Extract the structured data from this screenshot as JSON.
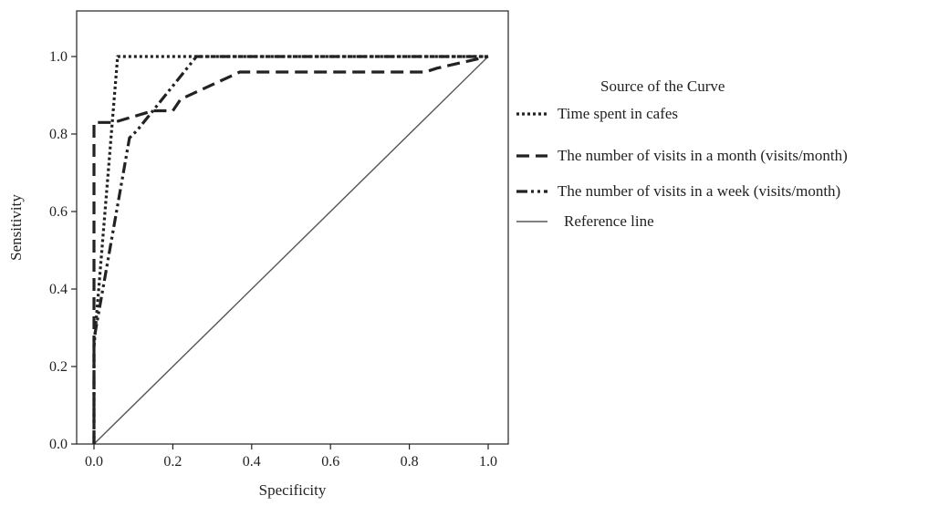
{
  "chart_data": {
    "type": "line",
    "title": "",
    "xlabel": "Specificity",
    "ylabel": "Sensitivity",
    "xlim": [
      0.0,
      1.0
    ],
    "ylim": [
      0.0,
      1.0
    ],
    "x_ticks": [
      "0.0",
      "0.2",
      "0.4",
      "0.6",
      "0.8",
      "1.0"
    ],
    "y_ticks": [
      "0.0",
      "0.2",
      "0.4",
      "0.6",
      "0.8",
      "1.0"
    ],
    "grid": false,
    "legend": {
      "title": "Source of the Curve",
      "placement": "right"
    },
    "series": [
      {
        "name": "Time spent in cafes",
        "style": "dotted",
        "color": "#222222",
        "points": [
          [
            0.0,
            0.0
          ],
          [
            0.0,
            0.25
          ],
          [
            0.06,
            1.0
          ],
          [
            0.25,
            1.0
          ],
          [
            1.0,
            1.0
          ]
        ]
      },
      {
        "name": "The number of visits in a month (visits/month)",
        "style": "dashed",
        "color": "#222222",
        "points": [
          [
            0.0,
            0.0
          ],
          [
            0.0,
            0.83
          ],
          [
            0.05,
            0.83
          ],
          [
            0.15,
            0.86
          ],
          [
            0.2,
            0.86
          ],
          [
            0.22,
            0.89
          ],
          [
            0.37,
            0.96
          ],
          [
            0.84,
            0.96
          ],
          [
            0.87,
            0.97
          ],
          [
            1.0,
            1.0
          ]
        ]
      },
      {
        "name": "The number of visits in a week (visits/month)",
        "style": "dash-dot-dot",
        "color": "#222222",
        "points": [
          [
            0.0,
            0.0
          ],
          [
            0.0,
            0.27
          ],
          [
            0.09,
            0.79
          ],
          [
            0.11,
            0.81
          ],
          [
            0.26,
            1.0
          ],
          [
            1.0,
            1.0
          ]
        ]
      },
      {
        "name": "Reference line",
        "style": "solid",
        "color": "#555555",
        "points": [
          [
            0.0,
            0.0
          ],
          [
            1.0,
            1.0
          ]
        ]
      }
    ]
  }
}
